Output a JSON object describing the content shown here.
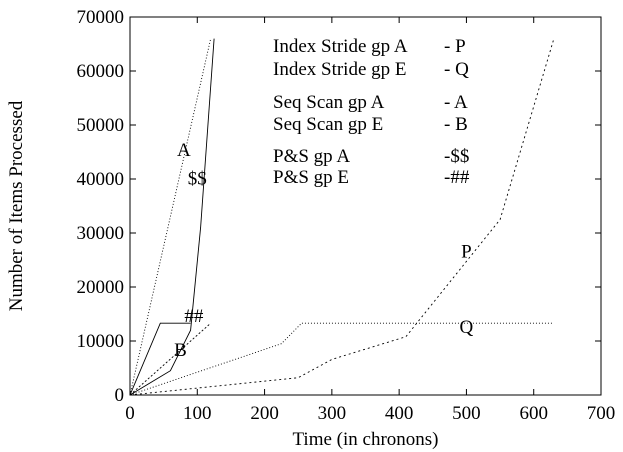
{
  "chart_data": {
    "type": "line",
    "title": "",
    "xlabel": "Time (in chronons)",
    "ylabel": "Number of Items Processed",
    "xlim": [
      0,
      700
    ],
    "ylim": [
      0,
      70000
    ],
    "xticks": [
      0,
      100,
      200,
      300,
      400,
      500,
      600,
      700
    ],
    "yticks": [
      0,
      10000,
      20000,
      30000,
      40000,
      50000,
      60000,
      70000
    ],
    "grid": false,
    "legend_position": "top-center",
    "legend": [
      {
        "label": "Index Stride gp A",
        "marker": "- P"
      },
      {
        "label": "Index Stride gp E",
        "marker": "- Q"
      },
      {
        "label": "Seq Scan gp A",
        "marker": "- A"
      },
      {
        "label": "Seq Scan gp E",
        "marker": "- B"
      },
      {
        "label": "P&S gp A",
        "marker": "-$$"
      },
      {
        "label": "P&S gp E",
        "marker": "-##"
      }
    ],
    "series": [
      {
        "name": "Index Stride gp A",
        "tag": "P",
        "tag_at": [
          500,
          25500
        ],
        "dash": "2,3",
        "color": "#000000",
        "points": [
          [
            0,
            0
          ],
          [
            250,
            3200
          ],
          [
            300,
            6600
          ],
          [
            410,
            10800
          ],
          [
            550,
            32500
          ],
          [
            630,
            66000
          ]
        ]
      },
      {
        "name": "Index Stride gp E",
        "tag": "Q",
        "tag_at": [
          500,
          11500
        ],
        "dash": "1,2",
        "color": "#000000",
        "points": [
          [
            0,
            0
          ],
          [
            225,
            9500
          ],
          [
            255,
            13300
          ],
          [
            630,
            13300
          ]
        ]
      },
      {
        "name": "Seq Scan gp A",
        "tag": "A",
        "tag_at": [
          80,
          44300
        ],
        "dash": "1,2",
        "color": "#000000",
        "points": [
          [
            0,
            0
          ],
          [
            120,
            66000
          ]
        ]
      },
      {
        "name": "Seq Scan gp E",
        "tag": "B",
        "tag_at": [
          75,
          7200
        ],
        "dash": "2,2",
        "color": "#000000",
        "points": [
          [
            0,
            0
          ],
          [
            120,
            13300
          ]
        ]
      },
      {
        "name": "P&S gp A",
        "tag": "$$",
        "tag_at": [
          100,
          39000
        ],
        "dash": "",
        "color": "#000000",
        "points": [
          [
            0,
            0
          ],
          [
            60,
            4500
          ],
          [
            90,
            12000
          ],
          [
            105,
            31000
          ],
          [
            125,
            66000
          ]
        ]
      },
      {
        "name": "P&S gp E",
        "tag": "##",
        "tag_at": [
          95,
          13500
        ],
        "dash": "",
        "color": "#000000",
        "points": [
          [
            0,
            0
          ],
          [
            45,
            13300
          ],
          [
            90,
            13300
          ]
        ]
      }
    ]
  }
}
